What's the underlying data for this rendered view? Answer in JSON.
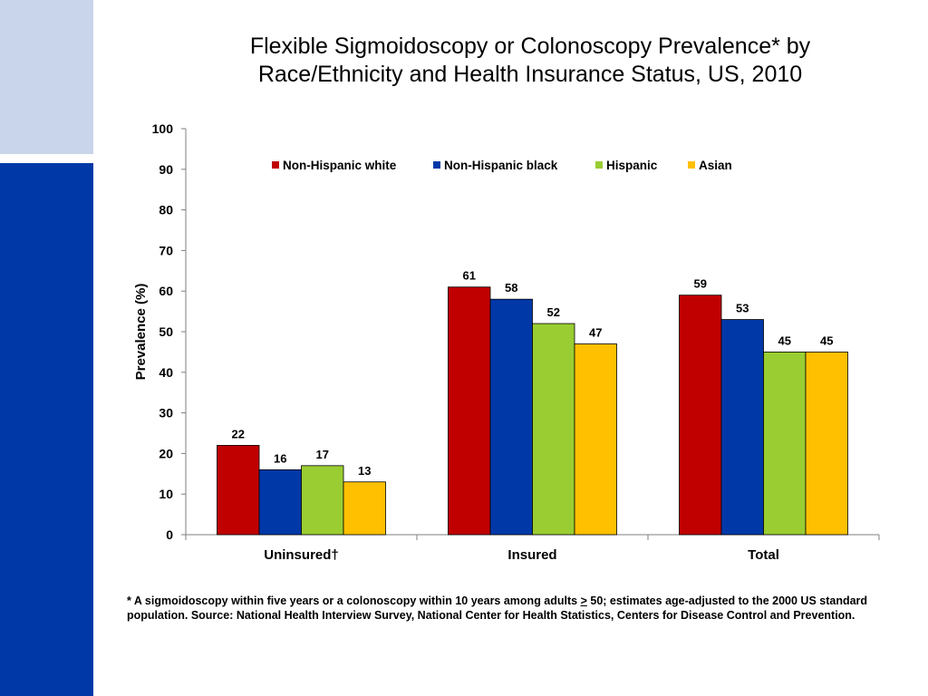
{
  "slide": {
    "title_line1": "Flexible Sigmoidoscopy or Colonoscopy Prevalence* by",
    "title_line2": "Race/Ethnicity and Health Insurance Status, US, 2010",
    "footnote_before": "* A sigmoidoscopy within  five years or a colonoscopy within 10 years among adults ",
    "footnote_ge": ">",
    "footnote_after": " 50; estimates age-adjusted to the 2000 US standard population. Source: National Health Interview Survey, National Center for Health Statistics, Centers for Disease Control and Prevention."
  },
  "colors": {
    "sidebar_light": "#c9d5ea",
    "sidebar_dark": "#0038a8"
  },
  "chart_data": {
    "type": "bar",
    "title": "Flexible Sigmoidoscopy or Colonoscopy Prevalence* by Race/Ethnicity and Health Insurance Status, US, 2010",
    "xlabel": "",
    "ylabel": "Prevalence (%)",
    "ylim": [
      0,
      100
    ],
    "yticks": [
      0,
      10,
      20,
      30,
      40,
      50,
      60,
      70,
      80,
      90,
      100
    ],
    "grid": false,
    "legend_position": "top",
    "categories": [
      "Uninsured†",
      "Insured",
      "Total"
    ],
    "series": [
      {
        "name": "Non-Hispanic white",
        "color": "#c00000",
        "values": [
          22,
          61,
          59
        ]
      },
      {
        "name": "Non-Hispanic black",
        "color": "#0038a8",
        "values": [
          16,
          58,
          53
        ]
      },
      {
        "name": "Hispanic",
        "color": "#9acd32",
        "values": [
          17,
          52,
          45
        ]
      },
      {
        "name": "Asian",
        "color": "#ffc000",
        "values": [
          13,
          47,
          45
        ]
      }
    ]
  }
}
